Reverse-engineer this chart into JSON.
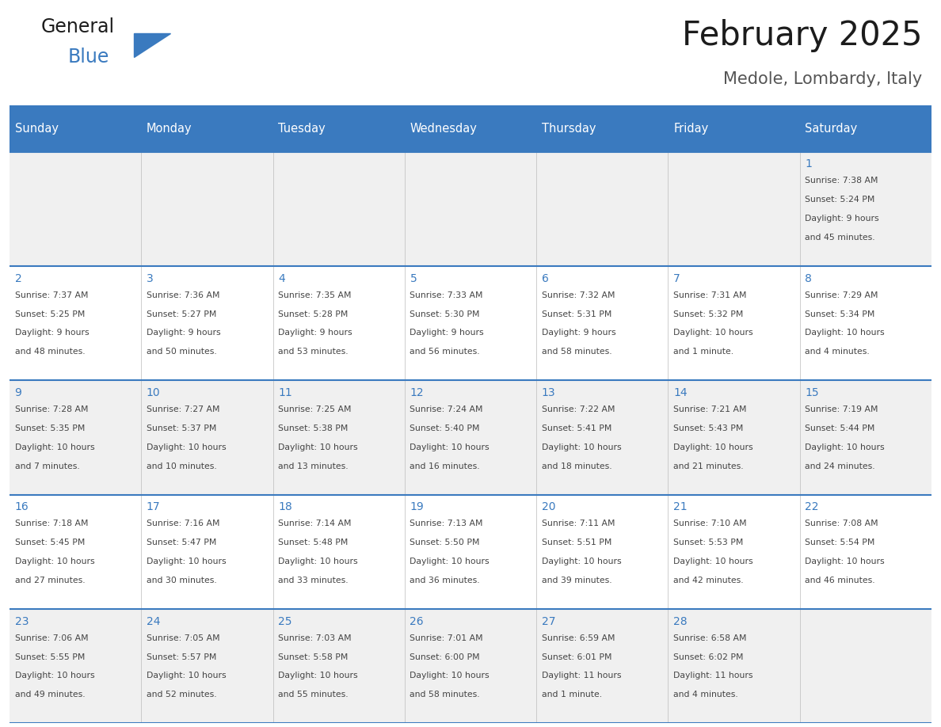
{
  "title": "February 2025",
  "subtitle": "Medole, Lombardy, Italy",
  "header_bg": "#3a7abf",
  "header_text_color": "#ffffff",
  "day_headers": [
    "Sunday",
    "Monday",
    "Tuesday",
    "Wednesday",
    "Thursday",
    "Friday",
    "Saturday"
  ],
  "cell_bg_light": "#f0f0f0",
  "cell_bg_white": "#ffffff",
  "cell_border_color": "#3a7abf",
  "day_number_color": "#3a7abf",
  "text_color": "#444444",
  "calendar_data": [
    [
      null,
      null,
      null,
      null,
      null,
      null,
      {
        "day": 1,
        "sunrise": "7:38 AM",
        "sunset": "5:24 PM",
        "daylight": "9 hours and 45 minutes."
      }
    ],
    [
      {
        "day": 2,
        "sunrise": "7:37 AM",
        "sunset": "5:25 PM",
        "daylight": "9 hours and 48 minutes."
      },
      {
        "day": 3,
        "sunrise": "7:36 AM",
        "sunset": "5:27 PM",
        "daylight": "9 hours and 50 minutes."
      },
      {
        "day": 4,
        "sunrise": "7:35 AM",
        "sunset": "5:28 PM",
        "daylight": "9 hours and 53 minutes."
      },
      {
        "day": 5,
        "sunrise": "7:33 AM",
        "sunset": "5:30 PM",
        "daylight": "9 hours and 56 minutes."
      },
      {
        "day": 6,
        "sunrise": "7:32 AM",
        "sunset": "5:31 PM",
        "daylight": "9 hours and 58 minutes."
      },
      {
        "day": 7,
        "sunrise": "7:31 AM",
        "sunset": "5:32 PM",
        "daylight": "10 hours and 1 minute."
      },
      {
        "day": 8,
        "sunrise": "7:29 AM",
        "sunset": "5:34 PM",
        "daylight": "10 hours and 4 minutes."
      }
    ],
    [
      {
        "day": 9,
        "sunrise": "7:28 AM",
        "sunset": "5:35 PM",
        "daylight": "10 hours and 7 minutes."
      },
      {
        "day": 10,
        "sunrise": "7:27 AM",
        "sunset": "5:37 PM",
        "daylight": "10 hours and 10 minutes."
      },
      {
        "day": 11,
        "sunrise": "7:25 AM",
        "sunset": "5:38 PM",
        "daylight": "10 hours and 13 minutes."
      },
      {
        "day": 12,
        "sunrise": "7:24 AM",
        "sunset": "5:40 PM",
        "daylight": "10 hours and 16 minutes."
      },
      {
        "day": 13,
        "sunrise": "7:22 AM",
        "sunset": "5:41 PM",
        "daylight": "10 hours and 18 minutes."
      },
      {
        "day": 14,
        "sunrise": "7:21 AM",
        "sunset": "5:43 PM",
        "daylight": "10 hours and 21 minutes."
      },
      {
        "day": 15,
        "sunrise": "7:19 AM",
        "sunset": "5:44 PM",
        "daylight": "10 hours and 24 minutes."
      }
    ],
    [
      {
        "day": 16,
        "sunrise": "7:18 AM",
        "sunset": "5:45 PM",
        "daylight": "10 hours and 27 minutes."
      },
      {
        "day": 17,
        "sunrise": "7:16 AM",
        "sunset": "5:47 PM",
        "daylight": "10 hours and 30 minutes."
      },
      {
        "day": 18,
        "sunrise": "7:14 AM",
        "sunset": "5:48 PM",
        "daylight": "10 hours and 33 minutes."
      },
      {
        "day": 19,
        "sunrise": "7:13 AM",
        "sunset": "5:50 PM",
        "daylight": "10 hours and 36 minutes."
      },
      {
        "day": 20,
        "sunrise": "7:11 AM",
        "sunset": "5:51 PM",
        "daylight": "10 hours and 39 minutes."
      },
      {
        "day": 21,
        "sunrise": "7:10 AM",
        "sunset": "5:53 PM",
        "daylight": "10 hours and 42 minutes."
      },
      {
        "day": 22,
        "sunrise": "7:08 AM",
        "sunset": "5:54 PM",
        "daylight": "10 hours and 46 minutes."
      }
    ],
    [
      {
        "day": 23,
        "sunrise": "7:06 AM",
        "sunset": "5:55 PM",
        "daylight": "10 hours and 49 minutes."
      },
      {
        "day": 24,
        "sunrise": "7:05 AM",
        "sunset": "5:57 PM",
        "daylight": "10 hours and 52 minutes."
      },
      {
        "day": 25,
        "sunrise": "7:03 AM",
        "sunset": "5:58 PM",
        "daylight": "10 hours and 55 minutes."
      },
      {
        "day": 26,
        "sunrise": "7:01 AM",
        "sunset": "6:00 PM",
        "daylight": "10 hours and 58 minutes."
      },
      {
        "day": 27,
        "sunrise": "6:59 AM",
        "sunset": "6:01 PM",
        "daylight": "11 hours and 1 minute."
      },
      {
        "day": 28,
        "sunrise": "6:58 AM",
        "sunset": "6:02 PM",
        "daylight": "11 hours and 4 minutes."
      },
      null
    ]
  ]
}
